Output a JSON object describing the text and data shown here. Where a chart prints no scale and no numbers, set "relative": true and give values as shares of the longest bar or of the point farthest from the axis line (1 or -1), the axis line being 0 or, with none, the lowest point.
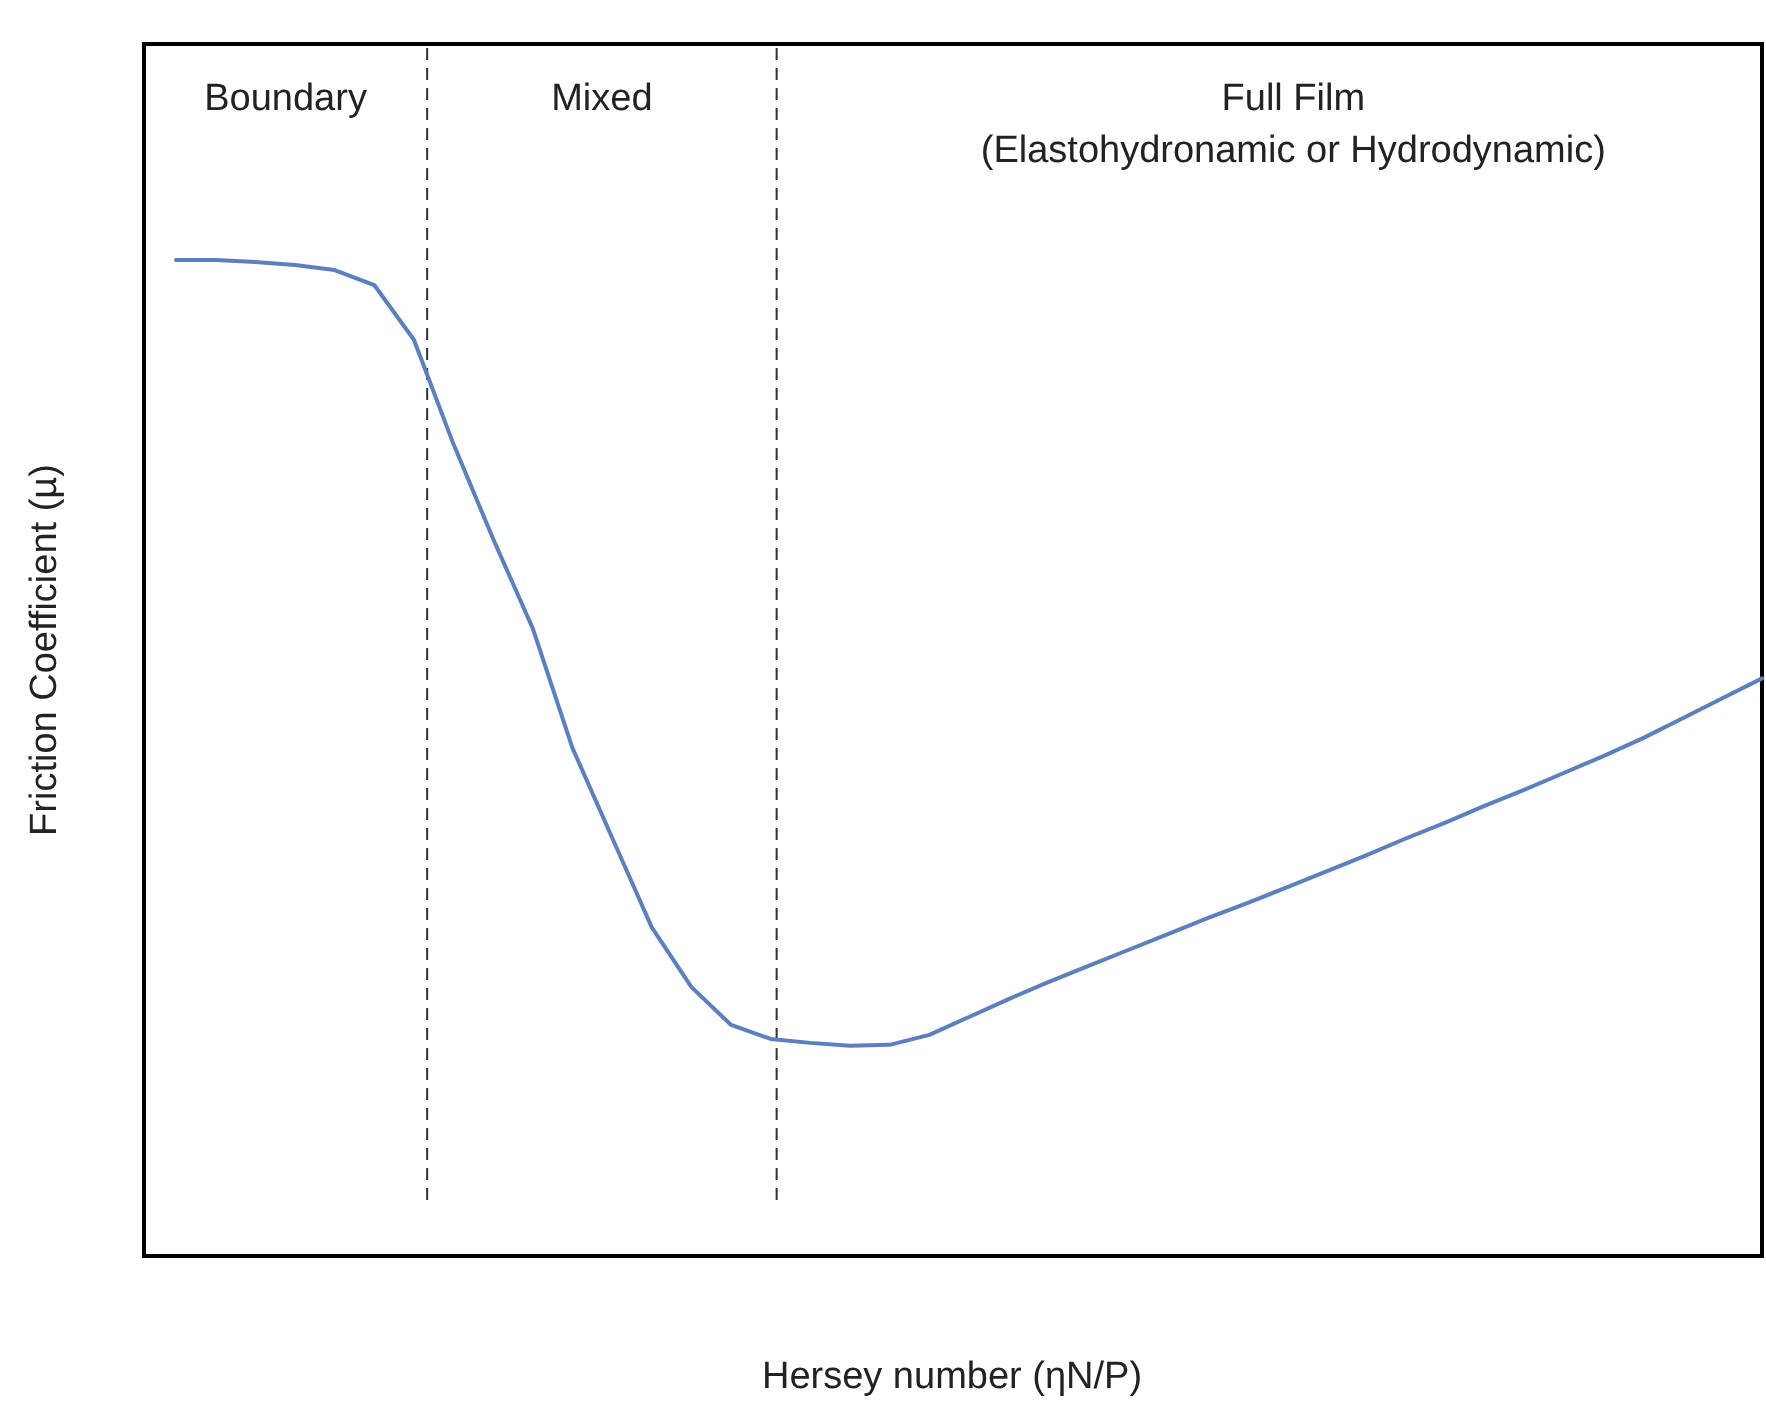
{
  "chart_data": {
    "type": "line",
    "relative": true,
    "xlabel": "Hersey number (ηN/P)",
    "ylabel": "Friction Coefficient (µ)",
    "categories": [
      null,
      null,
      null,
      null,
      null,
      null,
      null,
      null,
      null,
      null,
      null,
      null,
      null,
      null,
      null,
      null,
      null,
      null,
      null,
      null,
      null,
      null,
      null,
      null,
      null,
      null,
      null,
      null,
      null,
      null,
      null,
      null,
      null,
      null,
      null,
      null,
      null,
      null,
      null,
      null,
      null
    ],
    "series": [
      {
        "color": "#5b7fbf",
        "values": [
          1,
          1,
          0.998,
          0.995,
          0.99,
          0.975,
          0.92,
          0.815,
          0.72,
          0.63,
          0.51,
          0.42,
          0.33,
          0.27,
          0.232,
          0.218,
          0.214,
          0.211,
          0.212,
          0.222,
          0.24,
          0.258,
          0.275,
          0.291,
          0.307,
          0.323,
          0.339,
          0.354,
          0.37,
          0.386,
          0.402,
          0.419,
          0.435,
          0.452,
          0.468,
          0.485,
          0.502,
          0.52,
          0.54,
          0.56,
          0.58
        ]
      }
    ],
    "annotations": [
      "Boundary",
      "Mixed",
      "Full Film\n(Elastohydronamic or Hydrodynamic)"
    ]
  }
}
